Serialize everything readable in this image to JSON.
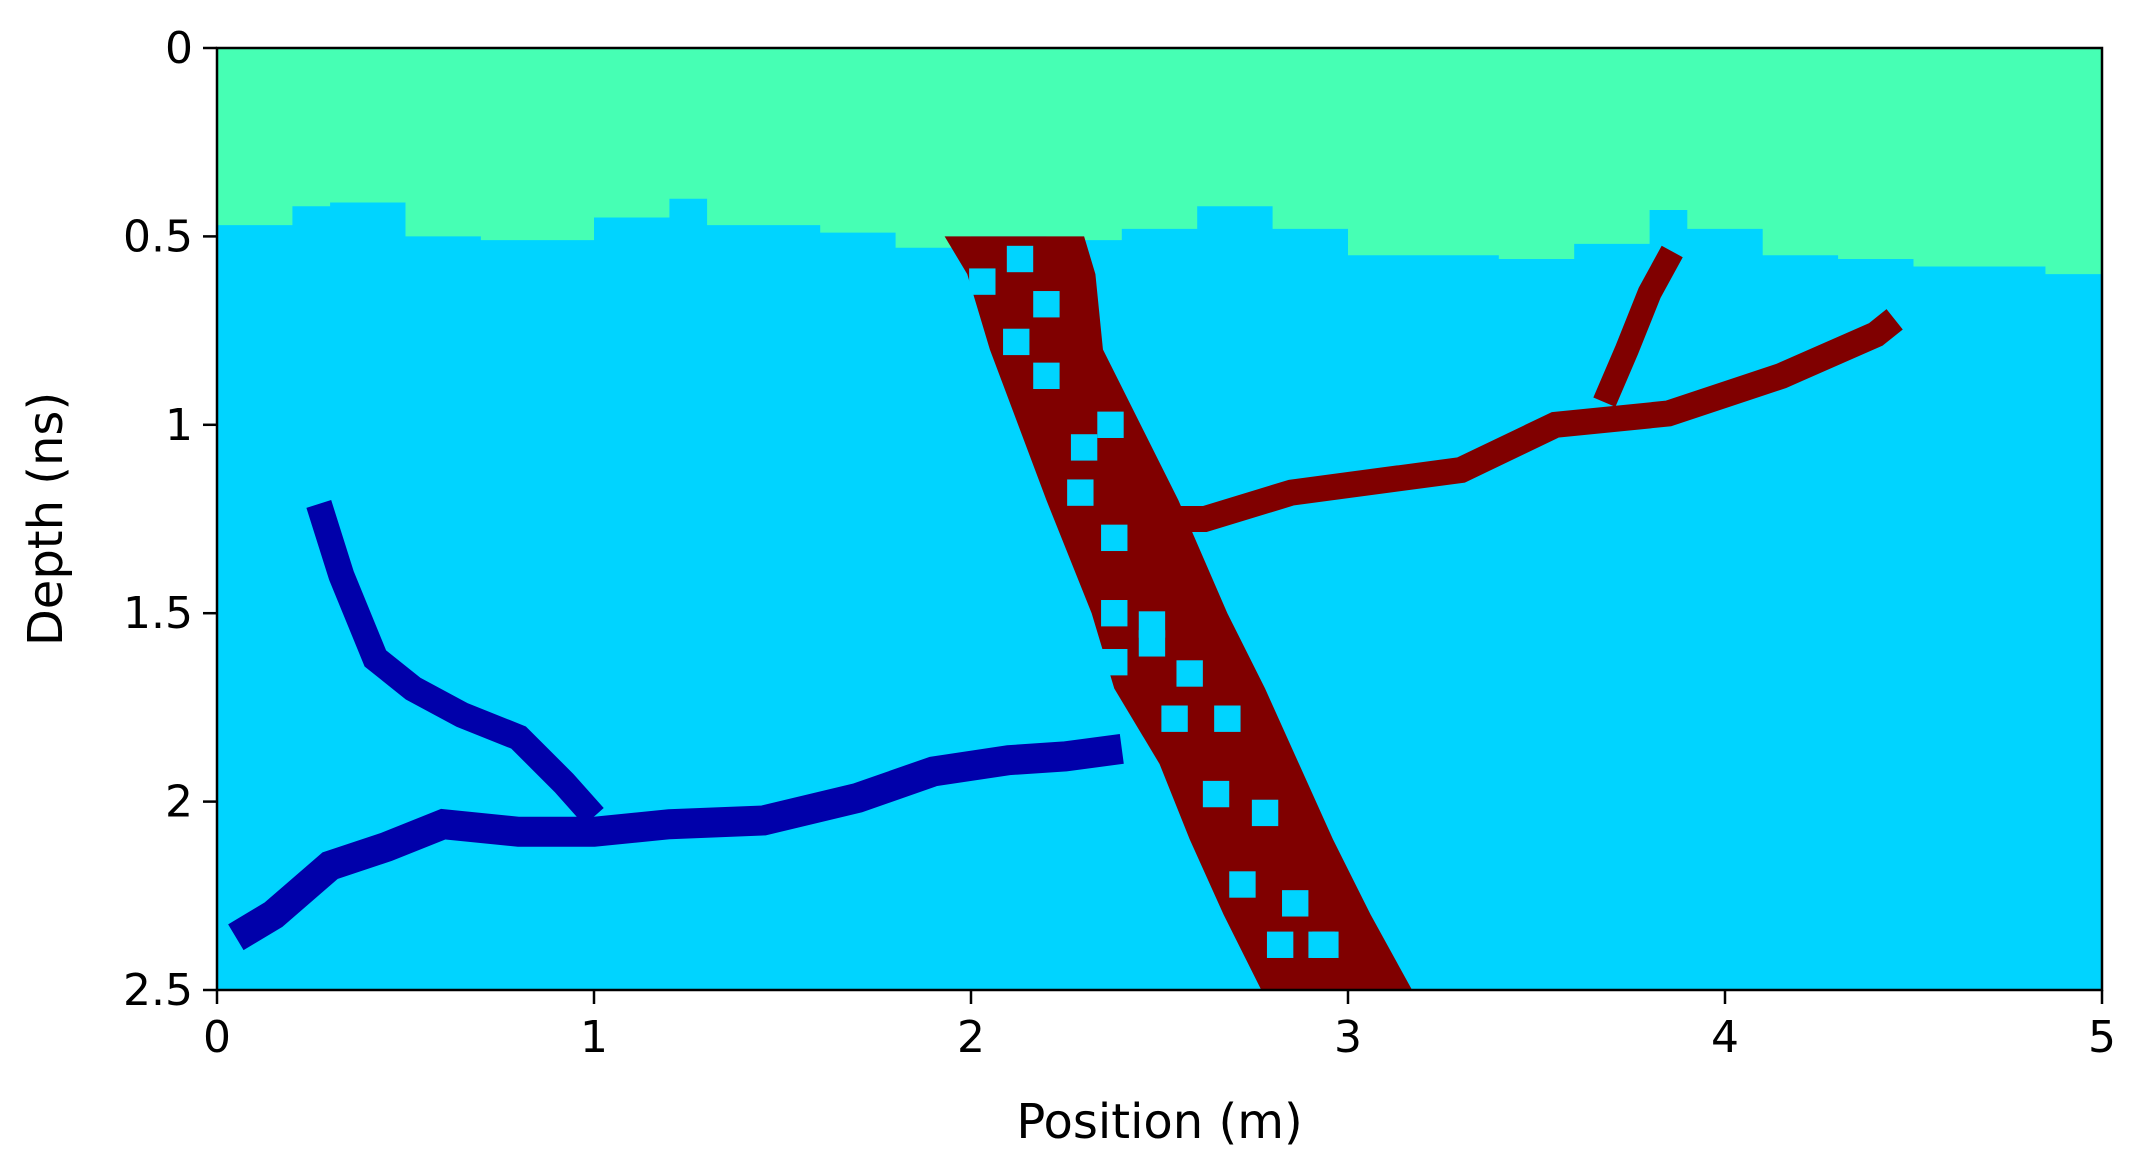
{
  "chart_data": {
    "type": "heatmap",
    "title": "",
    "xlabel": "Position (m)",
    "ylabel": "Depth (ns)",
    "xlim": [
      0,
      5
    ],
    "ylim": [
      2.5,
      0
    ],
    "y_inverted": true,
    "x_ticks": [
      "0",
      "1",
      "2",
      "3",
      "4",
      "5"
    ],
    "y_ticks": [
      "0",
      "0.5",
      "1",
      "1.5",
      "2",
      "2.5"
    ],
    "grid": false,
    "legend": "none",
    "colors": {
      "upper_layer": "#46ffb4",
      "background_medium": "#00d4ff",
      "inclined_root": "#800000",
      "root_cavities": "#00d4ff",
      "branching_root": "#0000aa"
    },
    "layer_interface": {
      "x": [
        0,
        0.2,
        0.3,
        0.5,
        0.7,
        1.0,
        1.2,
        1.3,
        1.6,
        1.8,
        2.0,
        2.2,
        2.4,
        2.6,
        2.8,
        3.0,
        3.2,
        3.4,
        3.6,
        3.8,
        3.9,
        4.1,
        4.3,
        4.5,
        4.7,
        4.85,
        5.0
      ],
      "y": [
        0.47,
        0.42,
        0.41,
        0.5,
        0.51,
        0.45,
        0.4,
        0.47,
        0.49,
        0.53,
        0.5,
        0.51,
        0.48,
        0.42,
        0.48,
        0.55,
        0.55,
        0.56,
        0.52,
        0.43,
        0.48,
        0.55,
        0.56,
        0.58,
        0.58,
        0.6,
        0.53
      ]
    },
    "inclined_root": {
      "left_edge": {
        "y": [
          0.5,
          0.6,
          0.8,
          1.2,
          1.5,
          1.7,
          1.9,
          2.1,
          2.3,
          2.5
        ],
        "x": [
          1.93,
          1.99,
          2.05,
          2.2,
          2.32,
          2.38,
          2.5,
          2.58,
          2.67,
          2.77
        ]
      },
      "right_edge": {
        "y": [
          0.5,
          0.6,
          0.8,
          1.2,
          1.5,
          1.7,
          1.9,
          2.1,
          2.3,
          2.5
        ],
        "x": [
          2.3,
          2.33,
          2.35,
          2.55,
          2.68,
          2.78,
          2.87,
          2.96,
          3.06,
          3.17
        ]
      },
      "cavities": {
        "x": [
          2.03,
          2.13,
          2.2,
          2.12,
          2.2,
          2.3,
          2.37,
          2.29,
          2.38,
          2.38,
          2.48,
          2.58,
          2.38,
          2.48,
          2.68,
          2.54,
          2.65,
          2.78,
          2.72,
          2.86,
          2.93,
          2.82,
          2.94
        ],
        "y": [
          0.62,
          0.56,
          0.68,
          0.78,
          0.87,
          1.06,
          1.0,
          1.18,
          1.3,
          1.5,
          1.58,
          1.66,
          1.63,
          1.53,
          1.78,
          1.78,
          1.98,
          2.03,
          2.22,
          2.27,
          2.38,
          2.38,
          2.38
        ]
      }
    },
    "maroon_branches": [
      {
        "x": [
          2.52,
          2.62,
          2.85,
          3.3,
          3.55,
          3.85,
          4.15,
          4.4,
          4.45
        ],
        "y": [
          1.25,
          1.25,
          1.18,
          1.12,
          1.0,
          0.97,
          0.87,
          0.76,
          0.72
        ]
      },
      {
        "x": [
          3.68,
          3.74,
          3.8,
          3.86
        ],
        "y": [
          0.94,
          0.8,
          0.65,
          0.54
        ]
      }
    ],
    "blue_root": [
      {
        "x": [
          0.05,
          0.15,
          0.3,
          0.45,
          0.6,
          0.8,
          1.0,
          1.2,
          1.45,
          1.7,
          1.9,
          2.1,
          2.25,
          2.4
        ],
        "y": [
          2.36,
          2.3,
          2.17,
          2.12,
          2.06,
          2.08,
          2.08,
          2.06,
          2.05,
          1.99,
          1.92,
          1.89,
          1.88,
          1.86
        ]
      },
      {
        "x": [
          0.27,
          0.33,
          0.42,
          0.52,
          0.65,
          0.8,
          0.92,
          1.0
        ],
        "y": [
          1.21,
          1.4,
          1.62,
          1.7,
          1.77,
          1.83,
          1.95,
          2.04
        ]
      }
    ]
  }
}
